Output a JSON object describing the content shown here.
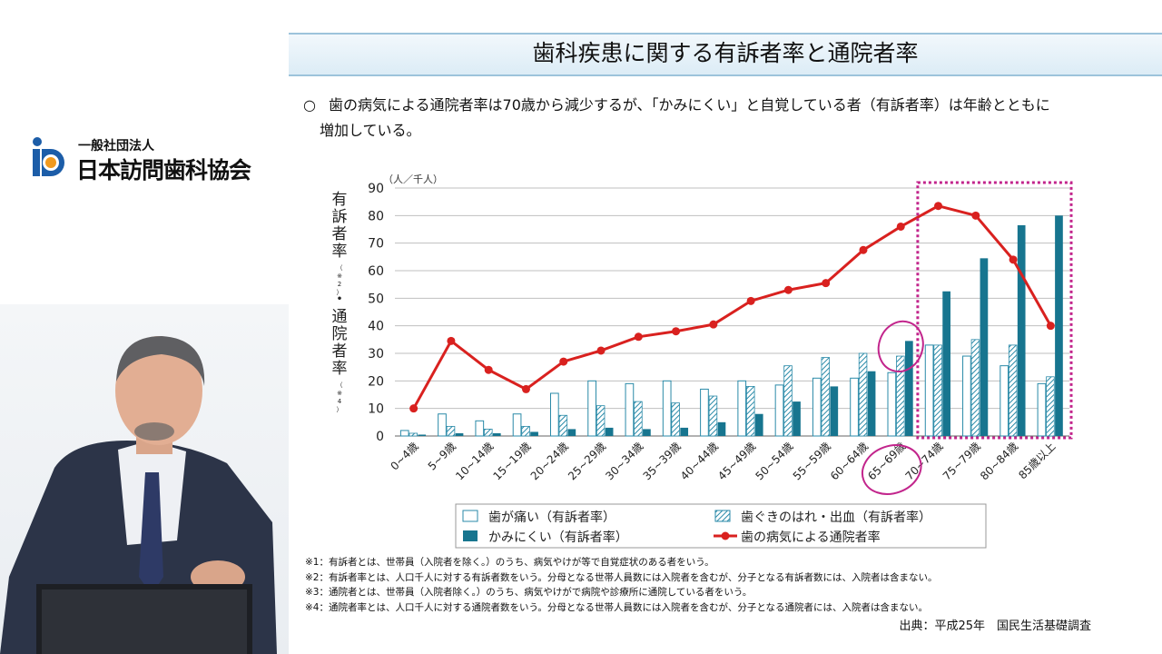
{
  "org": {
    "small": "一般社団法人",
    "name": "日本訪問歯科協会"
  },
  "slide": {
    "title": "歯科疾患に関する有訴者率と通院者率",
    "bullet": "○",
    "intro_line1": "歯の病気による通院者率は70歳から減少するが、「かみにくい」と自覚している者（有訴者率）は年齢とともに",
    "intro_line2": "増加している。",
    "footnotes": [
      "※1：有訴者とは、世帯員（入院者を除く。）のうち、病気やけが等で自覚症状のある者をいう。",
      "※2：有訴者率とは、人口千人に対する有訴者数をいう。分母となる世帯人員数には入院者を含むが、分子となる有訴者数には、入院者は含まない。",
      "※3：通院者とは、世帯員（入院者除く。）のうち、病気やけがで病院や診療所に通院している者をいう。",
      "※4：通院者率とは、人口千人に対する通院者数をいう。分母となる世帯人員数には入院者を含むが、分子となる通院者には、入院者は含まない。"
    ],
    "source": "出典：平成25年　国民生活基礎調査"
  },
  "chart_data": {
    "type": "bar",
    "unit_label": "（人／千人）",
    "ylabel_top": "有訴者率",
    "ylabel_note_top": "（※2）",
    "ylabel_sep": "・",
    "ylabel_bottom": "通院者率",
    "ylabel_note_bottom": "（※4）",
    "ylim": [
      0,
      90
    ],
    "yticks": [
      0,
      10,
      20,
      30,
      40,
      50,
      60,
      70,
      80,
      90
    ],
    "grid": true,
    "legend_position": "bottom",
    "categories": [
      "0~4歳",
      "5~9歳",
      "10~14歳",
      "15~19歳",
      "20~24歳",
      "25~29歳",
      "30~34歳",
      "35~39歳",
      "40~44歳",
      "45~49歳",
      "50~54歳",
      "55~59歳",
      "60~64歳",
      "65~69歳",
      "70~74歳",
      "75~79歳",
      "80~84歳",
      "85歳以上"
    ],
    "series": [
      {
        "name": "歯が痛い（有訴者率）",
        "kind": "bar",
        "style": "outline",
        "color": "#2a8aa8",
        "values": [
          2,
          8,
          5.5,
          8,
          15.5,
          20,
          19,
          20,
          17,
          20,
          18.5,
          21,
          21,
          23,
          33,
          29,
          25.5,
          19
        ]
      },
      {
        "name": "歯ぐきのはれ・出血（有訴者率）",
        "kind": "bar",
        "style": "hatched",
        "color": "#2a8aa8",
        "values": [
          1,
          3.5,
          2.5,
          3.5,
          7.5,
          11,
          12.5,
          12,
          14.5,
          18,
          25.5,
          28.5,
          30,
          29,
          33,
          35,
          33,
          21.5
        ]
      },
      {
        "name": "かみにくい（有訴者率）",
        "kind": "bar",
        "style": "solid",
        "color": "#17758f",
        "values": [
          0.5,
          1,
          1,
          1.5,
          2.5,
          3,
          2.5,
          3,
          5,
          8,
          12.5,
          18,
          23.5,
          34.5,
          52.5,
          64.5,
          76.5,
          80
        ]
      },
      {
        "name": "歯の病気による通院者率",
        "kind": "line",
        "color": "#d9211f",
        "values": [
          10,
          34.5,
          24,
          17,
          27,
          31,
          36,
          38,
          40.5,
          49,
          53,
          55.5,
          67.5,
          76,
          83.5,
          80,
          64,
          40
        ]
      }
    ],
    "highlight_box_categories": [
      "70~74歳",
      "85歳以上"
    ],
    "circled_category": "65~69歳"
  }
}
